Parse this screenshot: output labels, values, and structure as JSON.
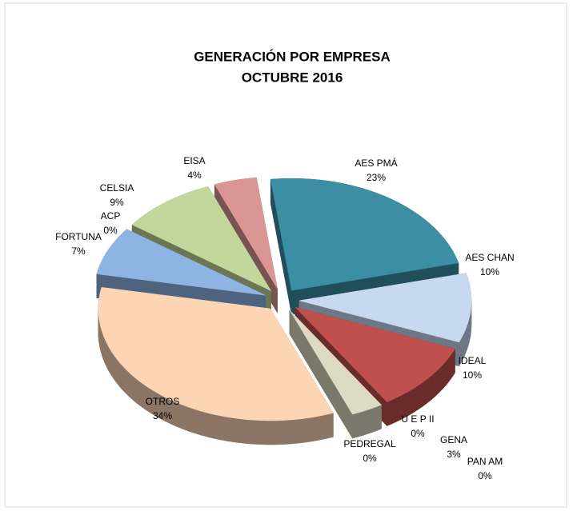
{
  "chart_data": {
    "type": "pie3d",
    "title": "GENERACIÓN  POR  EMPRESA",
    "subtitle": "OCTUBRE  2016",
    "categories": [
      "AES PMÁ",
      "AES CHAN",
      "IDEAL",
      "U E P  II",
      "PEDREGAL",
      "GENA",
      "PAN AM",
      "OTROS",
      "FORTUNA",
      "ACP",
      "CELSIA",
      "EISA"
    ],
    "values": [
      23,
      10,
      10,
      0,
      0,
      3,
      0,
      34,
      7,
      0,
      9,
      4
    ],
    "value_labels": [
      "23%",
      "10%",
      "10%",
      "0%",
      "0%",
      "3%",
      "0%",
      "34%",
      "7%",
      "0%",
      "9%",
      "4%"
    ],
    "colors": [
      "#3b8ea3",
      "#c6d9f1",
      "#c0504d",
      "#4bacc6",
      "#1f5a6a",
      "#ddd9c3",
      "#8c7e6a",
      "#fcd5b5",
      "#8eb4e3",
      "#7f6000",
      "#c3d69b",
      "#d99694"
    ]
  }
}
